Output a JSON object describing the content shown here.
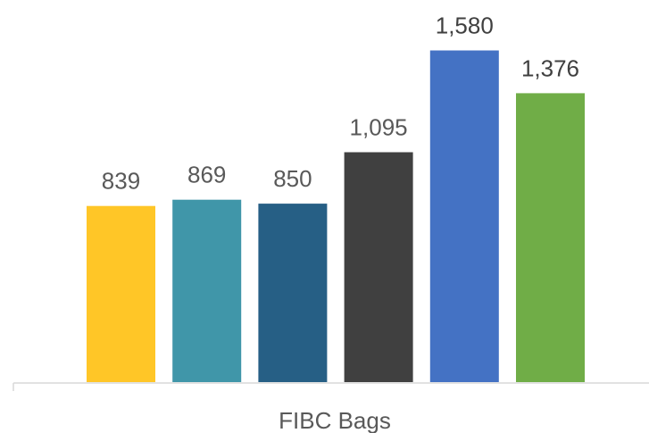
{
  "chart_data": {
    "type": "bar",
    "title": "",
    "xlabel": "",
    "ylabel": "",
    "categories": [
      "FIBC Bags"
    ],
    "series": [
      {
        "values": [
          839
        ],
        "color": "#FFC627"
      },
      {
        "values": [
          869
        ],
        "color": "#4096A9"
      },
      {
        "values": [
          850
        ],
        "color": "#265F85"
      },
      {
        "values": [
          1095
        ],
        "color": "#404040"
      },
      {
        "values": [
          1580
        ],
        "color": "#4472C4"
      },
      {
        "values": [
          1376
        ],
        "color": "#70AD47"
      }
    ],
    "data_labels": [
      "839",
      "869",
      "850",
      "1,095",
      "1,580",
      "1,376"
    ],
    "ylim": [
      0,
      1650
    ],
    "grid": false,
    "legend": "none"
  }
}
